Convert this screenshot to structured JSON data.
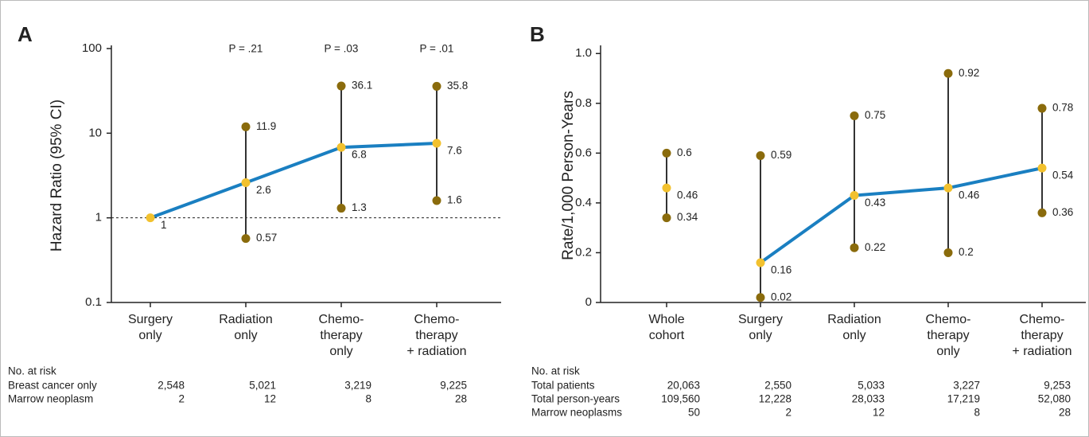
{
  "chart_data": [
    {
      "type": "line",
      "panel": "A",
      "y_label": "Hazard Ratio (95% CI)",
      "log_scale": true,
      "categories": [
        "Surgery\nonly",
        "Radiation\nonly",
        "Chemo-\ntherapy\nonly",
        "Chemo-\ntherapy\n+ radiation"
      ],
      "values": [
        1,
        2.6,
        6.8,
        7.6
      ],
      "ci_lower": [
        null,
        0.57,
        1.3,
        1.6
      ],
      "ci_upper": [
        null,
        11.9,
        36.1,
        35.8
      ],
      "annotations": [
        null,
        "P = .21",
        "P = .03",
        "P = .01"
      ],
      "line_from": 0,
      "reference_line": 1,
      "line_color": "#1a7fc1",
      "point_color": "#f2c12e",
      "ci_color": "#8a6b0c",
      "ylim": [
        0.1,
        100
      ],
      "yticks": [
        0.1,
        1,
        10,
        100
      ],
      "risk_table": {
        "title": "No. at risk",
        "rows": [
          {
            "label": "Breast cancer only",
            "values": [
              "2,548",
              "5,021",
              "3,219",
              "9,225"
            ]
          },
          {
            "label": "Marrow neoplasm",
            "values": [
              "2",
              "12",
              "8",
              "28"
            ]
          }
        ]
      }
    },
    {
      "type": "line",
      "panel": "B",
      "y_label": "Rate/1,000 Person-Years",
      "log_scale": false,
      "categories": [
        "Whole\ncohort",
        "Surgery\nonly",
        "Radiation\nonly",
        "Chemo-\ntherapy\nonly",
        "Chemo-\ntherapy\n+ radiation"
      ],
      "values": [
        0.46,
        0.16,
        0.43,
        0.46,
        0.54
      ],
      "ci_lower": [
        0.34,
        0.02,
        0.22,
        0.2,
        0.36
      ],
      "ci_upper": [
        0.6,
        0.59,
        0.75,
        0.92,
        0.78
      ],
      "line_from": 1,
      "line_color": "#1a7fc1",
      "point_color": "#f2c12e",
      "ci_color": "#8a6b0c",
      "ylim": [
        0,
        1.02
      ],
      "yticks": [
        0,
        0.2,
        0.4,
        0.6,
        0.8,
        {
          "value": 1,
          "label": "1.0"
        }
      ],
      "risk_table": {
        "title": "No. at risk",
        "rows": [
          {
            "label": "Total patients",
            "values": [
              "20,063",
              "2,550",
              "5,033",
              "3,227",
              "9,253"
            ]
          },
          {
            "label": "Total person-years",
            "values": [
              "109,560",
              "12,228",
              "28,033",
              "17,219",
              "52,080"
            ]
          },
          {
            "label": "Marrow neoplasms",
            "values": [
              "50",
              "2",
              "12",
              "8",
              "28"
            ]
          }
        ]
      }
    }
  ]
}
